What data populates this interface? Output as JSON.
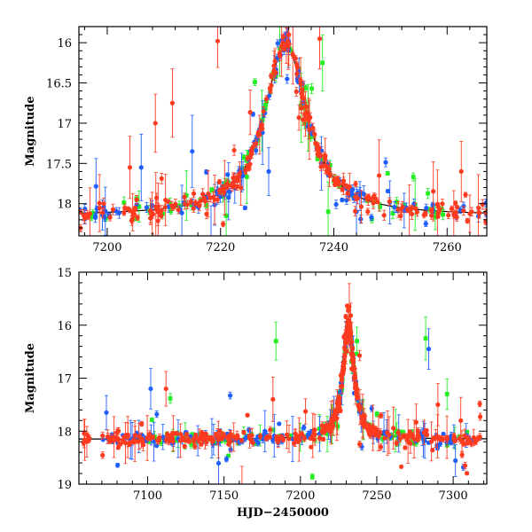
{
  "colors": {
    "red": "#ff3b1f",
    "blue": "#1f5fff",
    "green": "#22ee22",
    "model": "#000000"
  },
  "chart_data": [
    {
      "type": "scatter",
      "title": "",
      "xlabel": "",
      "ylabel": "Magnitude",
      "xlim": [
        7195,
        7267
      ],
      "ylim": [
        18.4,
        15.8
      ],
      "xticks": [
        7200,
        7220,
        7240,
        7260
      ],
      "yticks": [
        16,
        16.5,
        17,
        17.5,
        18
      ],
      "xtick_labels": [
        "7200",
        "7220",
        "7240",
        "7260"
      ],
      "ytick_labels": [
        "16",
        "16.5",
        "17",
        "17.5",
        "18"
      ],
      "model": {
        "peak_x": 7231.5,
        "peak_mag": 16.0,
        "base_mag": 18.15,
        "width": 4.5
      },
      "series": [
        {
          "name": "red",
          "x_range": [
            7195,
            7267
          ],
          "n": 260,
          "outliers": [
            [
              7219.5,
              15.98
            ],
            [
              7211.5,
              16.75
            ],
            [
              7237.5,
              15.95
            ],
            [
              7208.5,
              17.0
            ],
            [
              7204.0,
              17.55
            ],
            [
              7248.0,
              17.65
            ],
            [
              7262.5,
              17.6
            ]
          ]
        },
        {
          "name": "blue",
          "x_range": [
            7195,
            7267
          ],
          "n": 140,
          "outliers": [
            [
              7206.0,
              17.55
            ],
            [
              7215.0,
              17.35
            ],
            [
              7228.5,
              17.6
            ],
            [
              7244.0,
              18.1
            ]
          ]
        },
        {
          "name": "green",
          "x_range": [
            7196,
            7260
          ],
          "n": 90,
          "outliers": [
            [
              7238.0,
              16.25
            ],
            [
              7221.0,
              18.15
            ],
            [
              7239.0,
              18.1
            ]
          ]
        }
      ]
    },
    {
      "type": "scatter",
      "title": "",
      "xlabel": "HJD−2450000",
      "ylabel": "Magnitude",
      "xlim": [
        7055,
        7322
      ],
      "ylim": [
        19,
        15
      ],
      "xticks": [
        7100,
        7150,
        7200,
        7250,
        7300
      ],
      "yticks": [
        15,
        16,
        17,
        18,
        19
      ],
      "xtick_labels": [
        "7100",
        "7150",
        "7200",
        "7250",
        "7300"
      ],
      "ytick_labels": [
        "15",
        "16",
        "17",
        "18",
        "19"
      ],
      "model": {
        "peak_x": 7231.5,
        "peak_mag": 16.0,
        "base_mag": 18.15,
        "width": 4.5
      },
      "series": [
        {
          "name": "red",
          "x_range": [
            7058,
            7318
          ],
          "n": 420,
          "outliers": [
            [
              7232,
              15.65
            ],
            [
              7112,
              17.2
            ],
            [
              7182,
              17.4
            ],
            [
              7290,
              17.5
            ],
            [
              7305,
              17.8
            ]
          ]
        },
        {
          "name": "blue",
          "x_range": [
            7070,
            7312
          ],
          "n": 200,
          "outliers": [
            [
              7073,
              17.65
            ],
            [
              7102,
              17.2
            ],
            [
              7284,
              16.45
            ],
            [
              7240,
              17.75
            ]
          ]
        },
        {
          "name": "green",
          "x_range": [
            7100,
            7312
          ],
          "n": 150,
          "outliers": [
            [
              7184,
              16.3
            ],
            [
              7237,
              16.3
            ],
            [
              7282,
              16.25
            ],
            [
              7296,
              17.3
            ]
          ]
        }
      ]
    }
  ]
}
